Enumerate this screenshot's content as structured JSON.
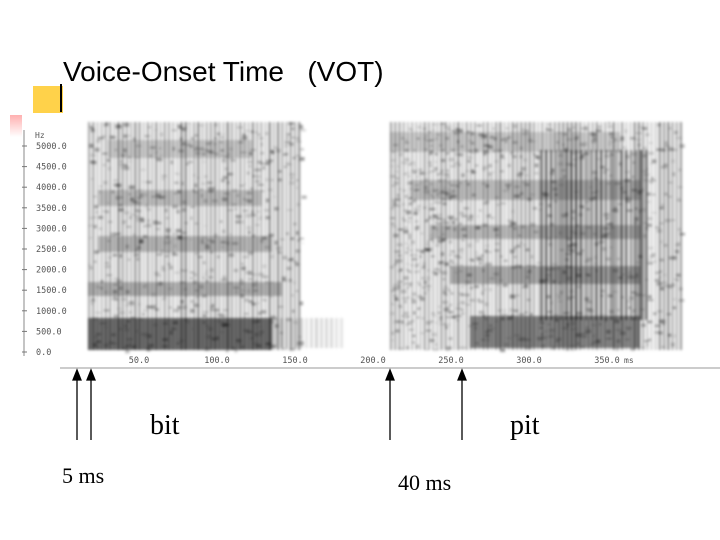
{
  "slide": {
    "title": "Voice-Onset Time   (VOT)",
    "words": {
      "bit": "bit",
      "pit": "pit"
    },
    "durations": {
      "short": "5 ms",
      "long": "40 ms"
    }
  },
  "spectrogram": {
    "y_unit": "Hz",
    "y_ticks": [
      "5000.0",
      "4500.0",
      "4000.0",
      "3500.0",
      "3000.0",
      "2500.0",
      "2000.0",
      "1500.0",
      "1000.0",
      "500.0",
      "0.0"
    ],
    "x_ticks": [
      "50.0",
      "100.0",
      "150.0",
      "200.0",
      "250.0",
      "300.0",
      "350.0"
    ],
    "x_unit": "ms"
  },
  "colors": {
    "accent_yellow": "#ffd24a",
    "accent_red": "#ffb0b0"
  }
}
